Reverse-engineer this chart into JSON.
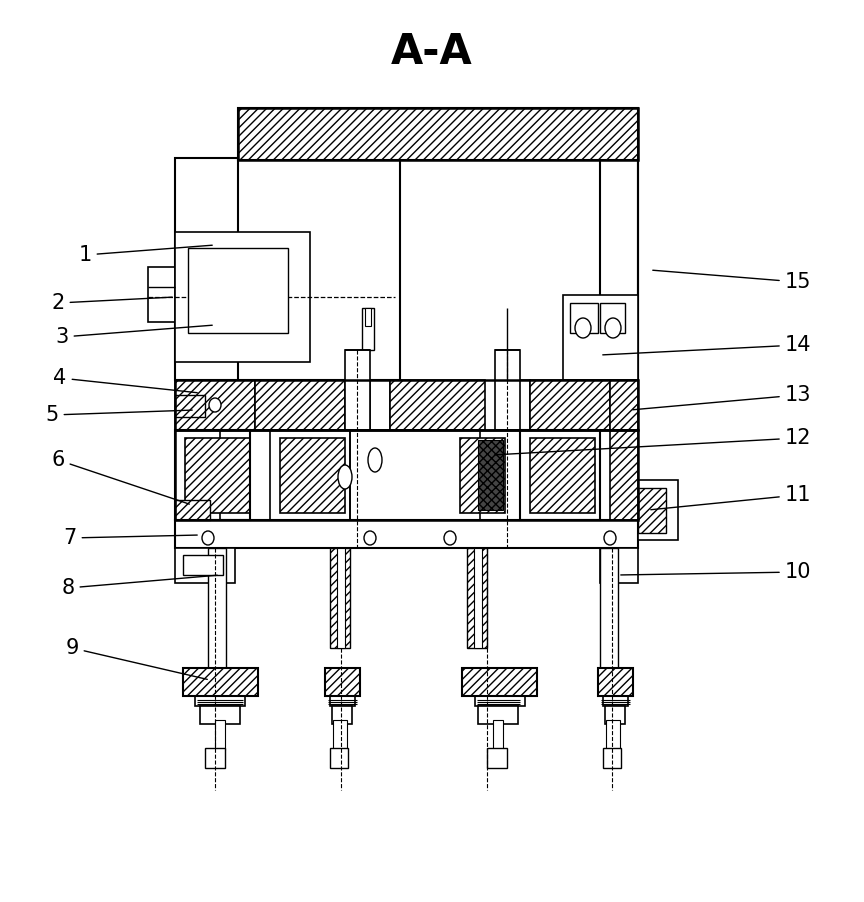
{
  "title": "A-A",
  "title_fontsize": 30,
  "background_color": "#ffffff",
  "line_color": "#000000",
  "label_fontsize": 15,
  "fig_width": 8.64,
  "fig_height": 9.02,
  "dpi": 100
}
